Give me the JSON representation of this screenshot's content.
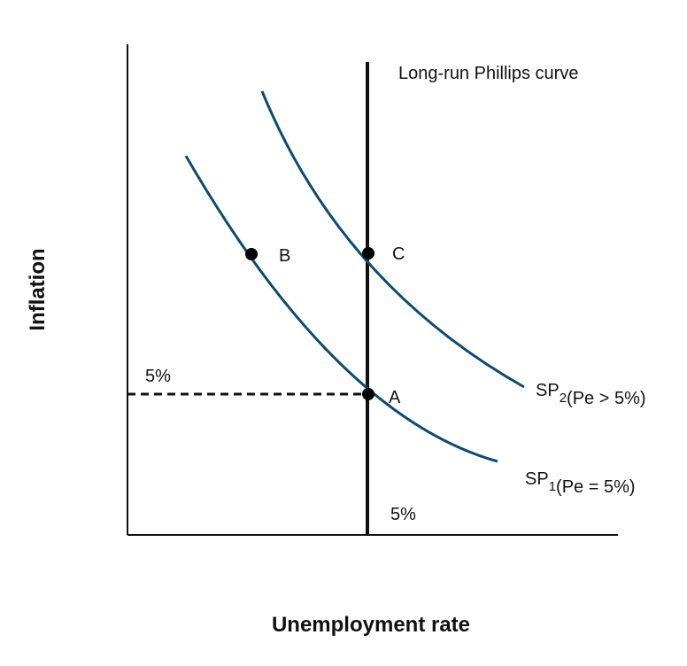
{
  "axes": {
    "x_title": "Unemployment rate",
    "y_title": "Inflation"
  },
  "lrpc": {
    "label": "Long-run Phillips curve"
  },
  "levels": {
    "inflation_label": "5%",
    "unemployment_label": "5%"
  },
  "points": {
    "a": "A",
    "b": "B",
    "c": "C"
  },
  "curves": {
    "sp1": {
      "name": "SP",
      "subscript": "1",
      "condition": "(Pe = 5%)"
    },
    "sp2": {
      "name": "SP",
      "subscript": "2",
      "condition": "(Pe > 5%)"
    }
  },
  "colors": {
    "curve": "#0b4a72",
    "axis": "#111111",
    "point": "#000000"
  }
}
